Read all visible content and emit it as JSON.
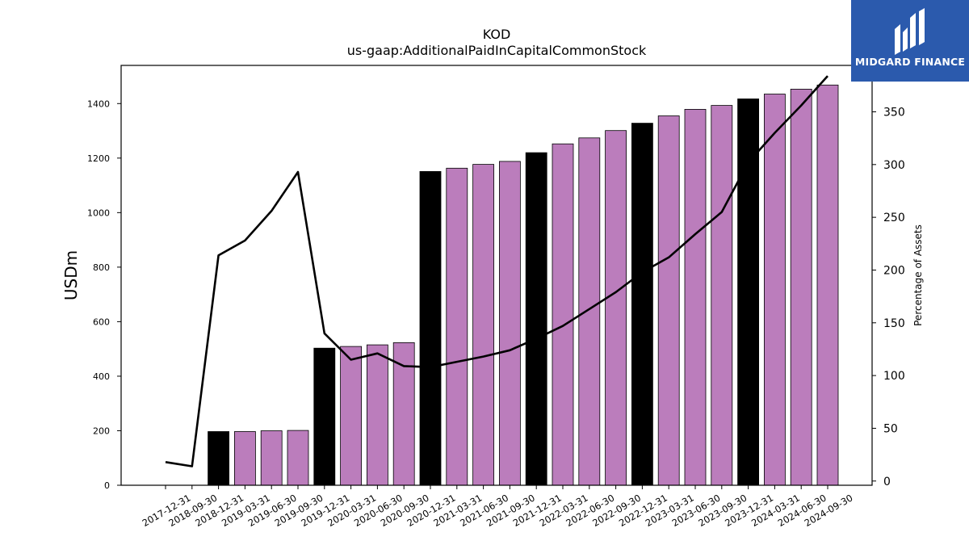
{
  "chart_data": {
    "type": "bar",
    "title": "KOD",
    "subtitle": "us-gaap:AdditionalPaidInCapitalCommonStock",
    "ylabel": "USDm",
    "y2label": "Percentage of Assets",
    "ylim": [
      0,
      1540
    ],
    "y2lim": [
      -4,
      394
    ],
    "yticks": [
      0,
      200,
      400,
      600,
      800,
      1000,
      1200,
      1400
    ],
    "y2ticks": [
      0,
      50,
      100,
      150,
      200,
      250,
      300,
      350
    ],
    "categories": [
      "2017-12-31",
      "2018-09-30",
      "2018-12-31",
      "2019-03-31",
      "2019-06-30",
      "2019-09-30",
      "2019-12-31",
      "2020-03-31",
      "2020-06-30",
      "2020-09-30",
      "2020-12-31",
      "2021-03-31",
      "2021-06-30",
      "2021-09-30",
      "2021-12-31",
      "2022-03-31",
      "2022-06-30",
      "2022-09-30",
      "2022-12-31",
      "2023-03-31",
      "2023-06-30",
      "2023-09-30",
      "2023-12-31",
      "2024-03-31",
      "2024-06-30",
      "2024-09-30"
    ],
    "series": [
      {
        "type": "bar",
        "axis": "left",
        "values": [
          0,
          0,
          197,
          197,
          200,
          201,
          503,
          509,
          515,
          523,
          1151,
          1163,
          1177,
          1188,
          1220,
          1252,
          1274,
          1301,
          1328,
          1355,
          1379,
          1393,
          1417,
          1435,
          1453,
          1468
        ],
        "colors": [
          "#000000",
          "#000000",
          "#000000",
          "#bb7dbc",
          "#bb7dbc",
          "#bb7dbc",
          "#000000",
          "#bb7dbc",
          "#bb7dbc",
          "#bb7dbc",
          "#000000",
          "#bb7dbc",
          "#bb7dbc",
          "#bb7dbc",
          "#000000",
          "#bb7dbc",
          "#bb7dbc",
          "#bb7dbc",
          "#000000",
          "#bb7dbc",
          "#bb7dbc",
          "#bb7dbc",
          "#000000",
          "#bb7dbc",
          "#bb7dbc",
          "#bb7dbc"
        ]
      },
      {
        "type": "line",
        "axis": "right",
        "color": "#000000",
        "values": [
          18,
          14,
          214,
          228,
          256,
          293,
          140,
          115,
          121,
          109,
          108,
          113,
          118,
          124,
          135,
          147,
          163,
          179,
          198,
          212,
          234,
          255,
          302,
          330,
          356,
          384
        ]
      }
    ],
    "grid": false,
    "legend": "none"
  },
  "logo": {
    "text": "MIDGARD FINANCE",
    "background": "#2b5aad"
  }
}
